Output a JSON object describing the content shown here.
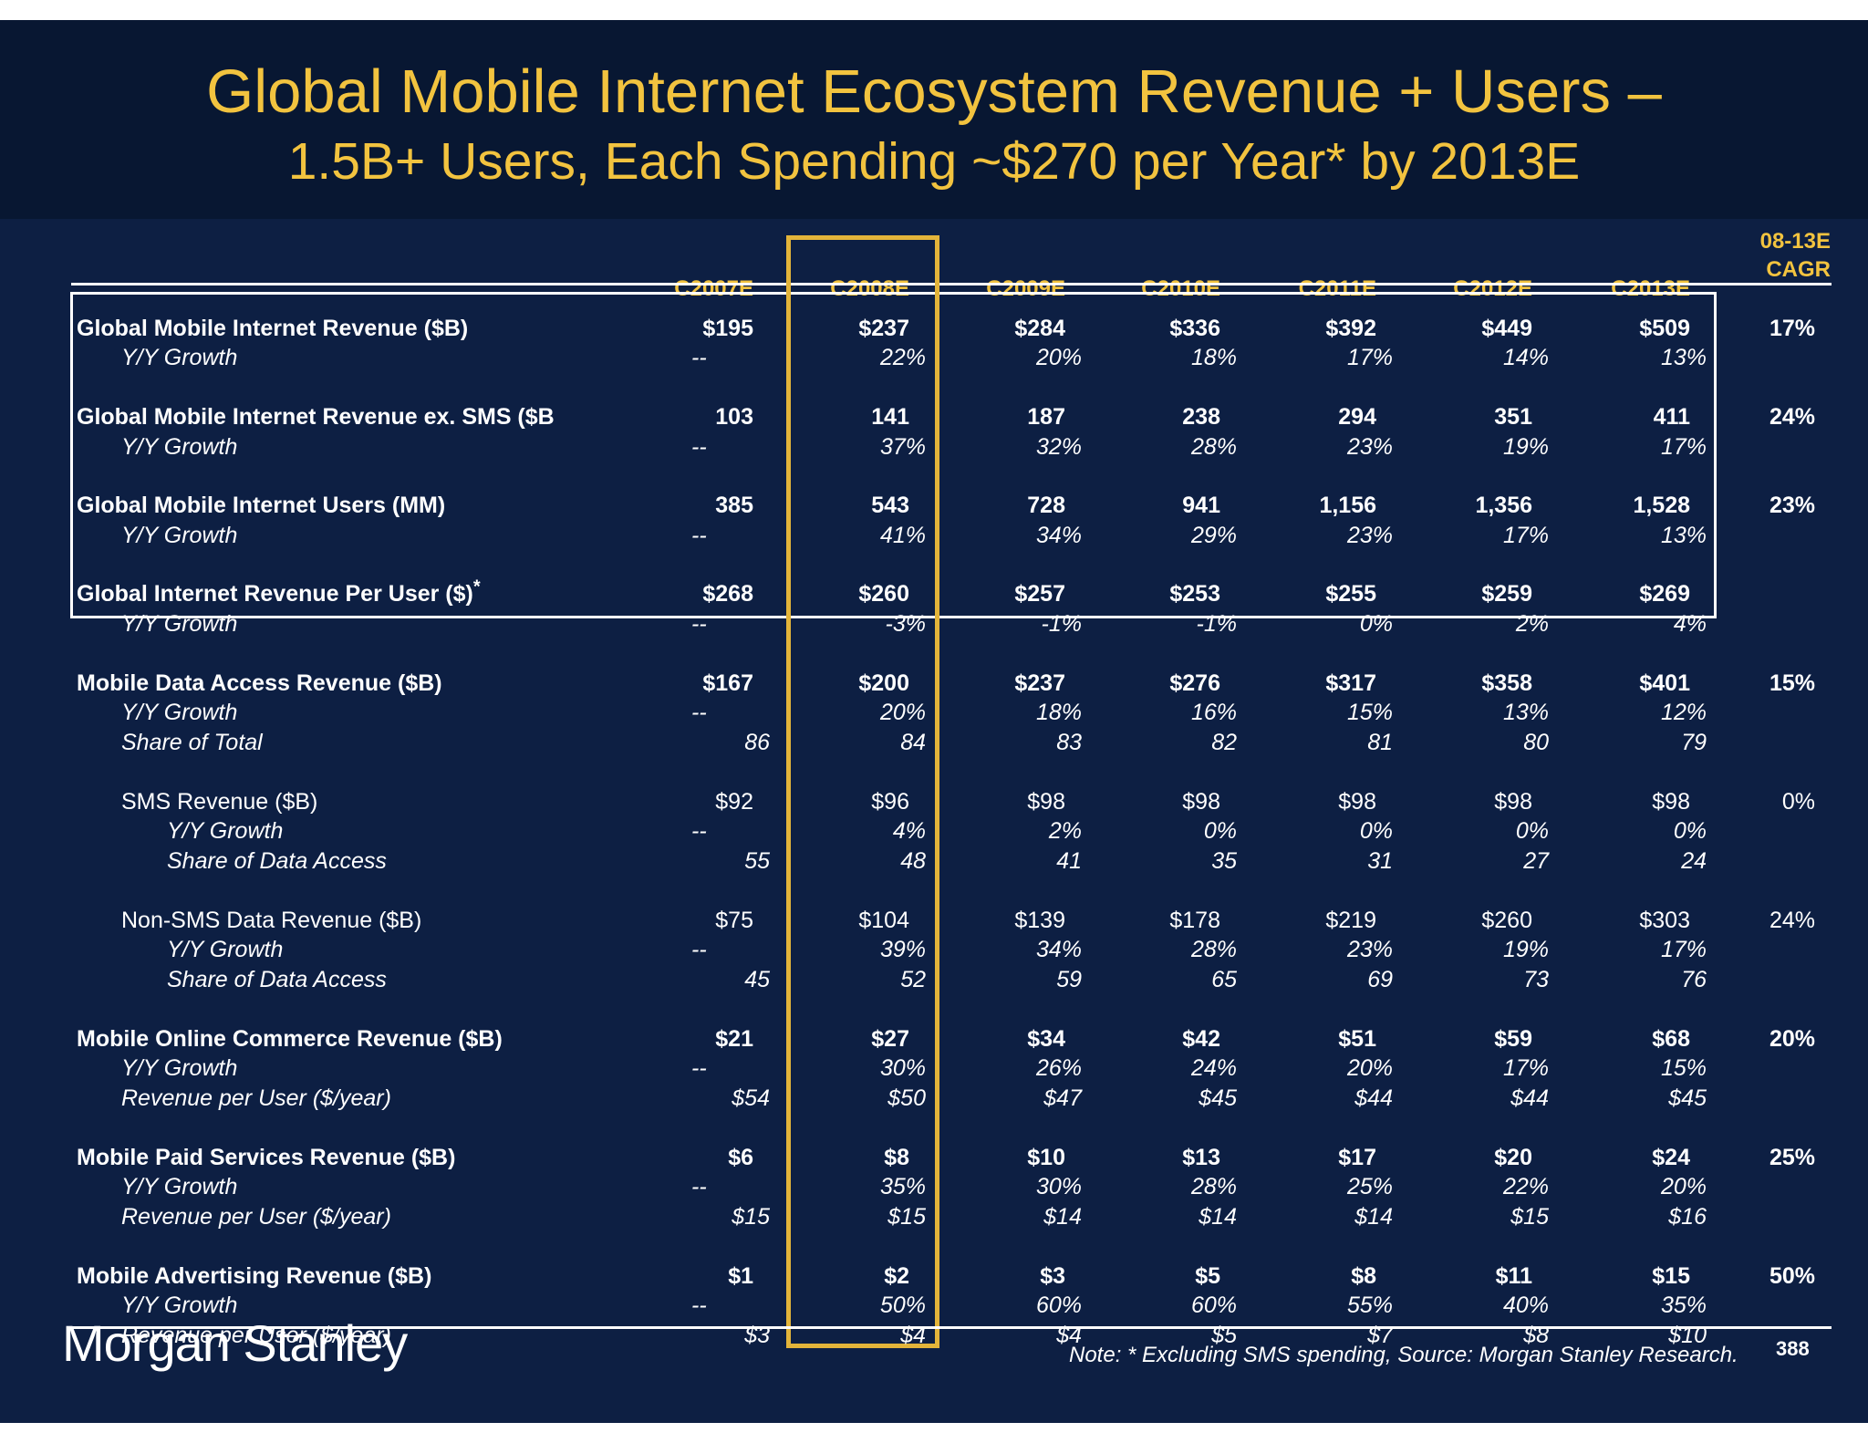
{
  "title": "Global Mobile Internet Ecosystem Revenue + Users –",
  "subtitle": "1.5B+ Users, Each Spending ~$270 per Year* by 2013E",
  "years": [
    "C2007E",
    "C2008E",
    "C2009E",
    "C2010E",
    "C2011E",
    "C2012E",
    "C2013E"
  ],
  "cagr_header": [
    "08-13E",
    "CAGR"
  ],
  "rows": [
    {
      "label": "Global Mobile Internet Revenue ($B)",
      "style": "bold",
      "indent": 0,
      "values": [
        "$195",
        "$237",
        "$284",
        "$336",
        "$392",
        "$449",
        "$509"
      ],
      "cagr": "17%"
    },
    {
      "label": "Y/Y Growth",
      "style": "italic",
      "indent": 1,
      "values": [
        "--",
        "22%",
        "20%",
        "18%",
        "17%",
        "14%",
        "13%"
      ],
      "cagr": ""
    },
    {
      "label": "Global Mobile Internet Revenue ex. SMS ($B",
      "style": "bold",
      "indent": 0,
      "values": [
        "103",
        "141",
        "187",
        "238",
        "294",
        "351",
        "411"
      ],
      "cagr": "24%"
    },
    {
      "label": "Y/Y Growth",
      "style": "italic",
      "indent": 1,
      "values": [
        "--",
        "37%",
        "32%",
        "28%",
        "23%",
        "19%",
        "17%"
      ],
      "cagr": ""
    },
    {
      "label": "Global Mobile Internet Users (MM)",
      "style": "bold",
      "indent": 0,
      "values": [
        "385",
        "543",
        "728",
        "941",
        "1,156",
        "1,356",
        "1,528"
      ],
      "cagr": "23%"
    },
    {
      "label": "Y/Y Growth",
      "style": "italic",
      "indent": 1,
      "values": [
        "--",
        "41%",
        "34%",
        "29%",
        "23%",
        "17%",
        "13%"
      ],
      "cagr": ""
    },
    {
      "label": "Global Internet Revenue Per User ($)",
      "marker": "*",
      "style": "bold",
      "indent": 0,
      "values": [
        "$268",
        "$260",
        "$257",
        "$253",
        "$255",
        "$259",
        "$269"
      ],
      "cagr": ""
    },
    {
      "label": "Y/Y Growth",
      "style": "italic",
      "indent": 1,
      "values": [
        "--",
        "-3%",
        "-1%",
        "-1%",
        "0%",
        "2%",
        "4%"
      ],
      "cagr": ""
    },
    {
      "label": "Mobile Data Access Revenue ($B)",
      "style": "bold",
      "indent": 0,
      "values": [
        "$167",
        "$200",
        "$237",
        "$276",
        "$317",
        "$358",
        "$401"
      ],
      "cagr": "15%"
    },
    {
      "label": "Y/Y Growth",
      "style": "italic",
      "indent": 1,
      "values": [
        "--",
        "20%",
        "18%",
        "16%",
        "15%",
        "13%",
        "12%"
      ],
      "cagr": ""
    },
    {
      "label": "Share of Total",
      "style": "italic",
      "indent": 1,
      "values": [
        "86",
        "84",
        "83",
        "82",
        "81",
        "80",
        "79"
      ],
      "cagr": ""
    },
    {
      "label": "SMS Revenue ($B)",
      "style": "plain",
      "indent": 1,
      "values": [
        "$92",
        "$96",
        "$98",
        "$98",
        "$98",
        "$98",
        "$98"
      ],
      "cagr": "0%"
    },
    {
      "label": "Y/Y Growth",
      "style": "italic",
      "indent": 2,
      "values": [
        "--",
        "4%",
        "2%",
        "0%",
        "0%",
        "0%",
        "0%"
      ],
      "cagr": ""
    },
    {
      "label": "Share of Data Access",
      "style": "italic",
      "indent": 2,
      "values": [
        "55",
        "48",
        "41",
        "35",
        "31",
        "27",
        "24"
      ],
      "cagr": ""
    },
    {
      "label": "Non-SMS Data Revenue ($B)",
      "style": "plain",
      "indent": 1,
      "values": [
        "$75",
        "$104",
        "$139",
        "$178",
        "$219",
        "$260",
        "$303"
      ],
      "cagr": "24%"
    },
    {
      "label": "Y/Y Growth",
      "style": "italic",
      "indent": 2,
      "values": [
        "--",
        "39%",
        "34%",
        "28%",
        "23%",
        "19%",
        "17%"
      ],
      "cagr": ""
    },
    {
      "label": "Share of Data Access",
      "style": "italic",
      "indent": 2,
      "values": [
        "45",
        "52",
        "59",
        "65",
        "69",
        "73",
        "76"
      ],
      "cagr": ""
    },
    {
      "label": "Mobile Online Commerce Revenue ($B)",
      "style": "bold",
      "indent": 0,
      "values": [
        "$21",
        "$27",
        "$34",
        "$42",
        "$51",
        "$59",
        "$68"
      ],
      "cagr": "20%"
    },
    {
      "label": "Y/Y Growth",
      "style": "italic",
      "indent": 1,
      "values": [
        "--",
        "30%",
        "26%",
        "24%",
        "20%",
        "17%",
        "15%"
      ],
      "cagr": ""
    },
    {
      "label": "Revenue per User ($/year)",
      "style": "italic",
      "indent": 1,
      "values": [
        "$54",
        "$50",
        "$47",
        "$45",
        "$44",
        "$44",
        "$45"
      ],
      "cagr": ""
    },
    {
      "label": "Mobile Paid Services Revenue ($B)",
      "style": "bold",
      "indent": 0,
      "values": [
        "$6",
        "$8",
        "$10",
        "$13",
        "$17",
        "$20",
        "$24"
      ],
      "cagr": "25%"
    },
    {
      "label": "Y/Y Growth",
      "style": "italic",
      "indent": 1,
      "values": [
        "--",
        "35%",
        "30%",
        "28%",
        "25%",
        "22%",
        "20%"
      ],
      "cagr": ""
    },
    {
      "label": "Revenue per User ($/year)",
      "style": "italic",
      "indent": 1,
      "values": [
        "$15",
        "$15",
        "$14",
        "$14",
        "$14",
        "$15",
        "$16"
      ],
      "cagr": ""
    },
    {
      "label": "Mobile Advertising Revenue ($B)",
      "style": "bold",
      "indent": 0,
      "values": [
        "$1",
        "$2",
        "$3",
        "$5",
        "$8",
        "$11",
        "$15"
      ],
      "cagr": "50%"
    },
    {
      "label": "Y/Y Growth",
      "style": "italic",
      "indent": 1,
      "values": [
        "--",
        "50%",
        "60%",
        "60%",
        "55%",
        "40%",
        "35%"
      ],
      "cagr": ""
    },
    {
      "label": "Revenue per User ($/year)",
      "style": "italic",
      "indent": 1,
      "values": [
        "$3",
        "$4",
        "$4",
        "$5",
        "$7",
        "$8",
        "$10"
      ],
      "cagr": ""
    }
  ],
  "logo_text": "Morgan Stanley",
  "note": "Note: * Excluding SMS spending, Source: Morgan Stanley Research.",
  "page_number": "388",
  "colors": {
    "background": "#0d1f43",
    "header": "#081732",
    "accent": "#f2c33f",
    "highlight_box": "#e3b43a"
  }
}
